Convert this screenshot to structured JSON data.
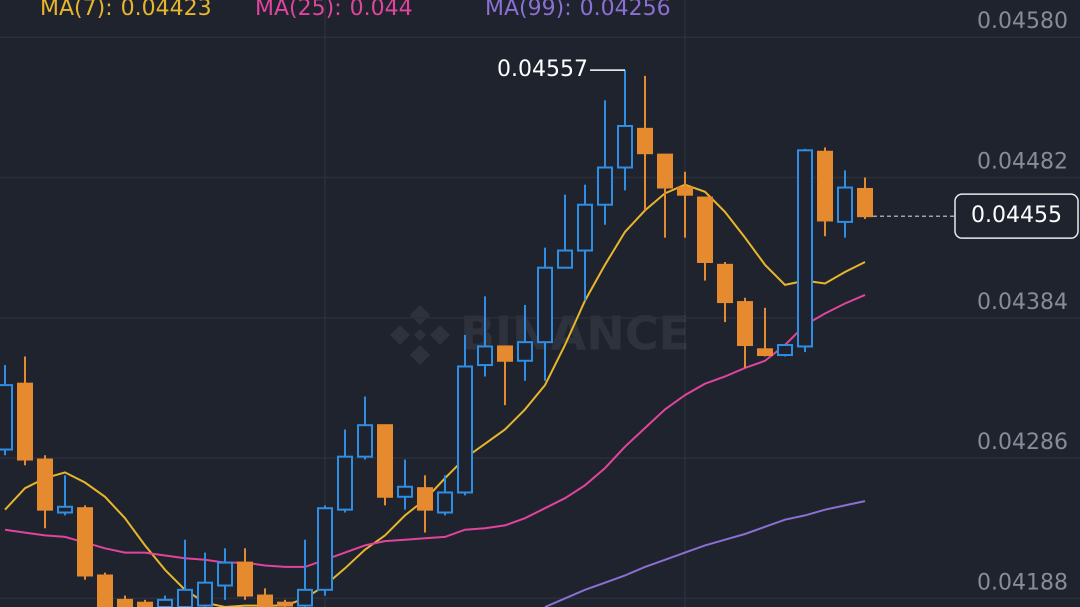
{
  "chart_data": {
    "type": "candlestick",
    "watermark": "BINANCE",
    "up_color": "#2f8de4",
    "down_color": "#e58a2e",
    "grid": true,
    "ylim": [
      0.04182,
      0.04606
    ],
    "yticks": [
      {
        "value": 0.0458,
        "label": "0.04580"
      },
      0.04482,
      0.04384,
      0.04286,
      0.04188
    ],
    "high_marker": 0.04557,
    "last_price": 0.04455,
    "open": [
      0.04292,
      0.04338,
      0.04285,
      0.04248,
      0.04251,
      0.04204,
      0.04187,
      0.04185,
      0.04182,
      0.04182,
      0.04183,
      0.04197,
      0.04213,
      0.0419,
      0.04185,
      0.04183,
      0.04194,
      0.0425,
      0.04287,
      0.04309,
      0.04259,
      0.04265,
      0.04248,
      0.04262,
      0.04351,
      0.04364,
      0.04354,
      0.04367,
      0.04419,
      0.04431,
      0.04463,
      0.04489,
      0.04516,
      0.04498,
      0.04475,
      0.04468,
      0.04421,
      0.04395,
      0.04362,
      0.04358,
      0.04364,
      0.045,
      0.04451,
      0.04474
    ],
    "high": [
      0.04351,
      0.04357,
      0.04288,
      0.04274,
      0.04253,
      0.04206,
      0.0419,
      0.04187,
      0.0419,
      0.04229,
      0.0422,
      0.04223,
      0.04223,
      0.04195,
      0.04187,
      0.04229,
      0.04253,
      0.04306,
      0.04329,
      0.04309,
      0.04285,
      0.04274,
      0.04274,
      0.04372,
      0.04399,
      0.04364,
      0.04393,
      0.04433,
      0.0447,
      0.04477,
      0.04536,
      0.04557,
      0.04553,
      0.04498,
      0.04486,
      0.04468,
      0.04423,
      0.04398,
      0.04391,
      0.04365,
      0.04502,
      0.04503,
      0.04487,
      0.04482
    ],
    "low": [
      0.04288,
      0.04281,
      0.04237,
      0.04246,
      0.04201,
      0.04182,
      0.04182,
      0.04182,
      0.04182,
      0.04182,
      0.04182,
      0.04187,
      0.04187,
      0.04182,
      0.04182,
      0.04182,
      0.0419,
      0.04248,
      0.04285,
      0.04253,
      0.0425,
      0.04234,
      0.04246,
      0.0426,
      0.04343,
      0.04323,
      0.0434,
      0.0434,
      0.04419,
      0.04396,
      0.04449,
      0.04473,
      0.04459,
      0.0444,
      0.0444,
      0.0441,
      0.04381,
      0.04349,
      0.04357,
      0.04357,
      0.0436,
      0.04441,
      0.0444,
      0.04453
    ],
    "close": [
      0.04337,
      0.04285,
      0.0425,
      0.04252,
      0.04204,
      0.04182,
      0.04182,
      0.04182,
      0.04187,
      0.04194,
      0.04199,
      0.04213,
      0.0419,
      0.04182,
      0.04183,
      0.04194,
      0.04251,
      0.04287,
      0.04309,
      0.04259,
      0.04266,
      0.0425,
      0.04262,
      0.0435,
      0.04364,
      0.04354,
      0.04367,
      0.04419,
      0.04431,
      0.04463,
      0.04489,
      0.04518,
      0.04499,
      0.04475,
      0.0447,
      0.04423,
      0.04395,
      0.04365,
      0.04358,
      0.04365,
      0.04501,
      0.04452,
      0.04475,
      0.04455
    ],
    "series": [
      {
        "name": "MA(7):",
        "current": 0.04423,
        "color": "#e9b62b",
        "values": [
          0.0425,
          0.04265,
          0.04272,
          0.04276,
          0.04269,
          0.04259,
          0.04244,
          0.04225,
          0.04208,
          0.04194,
          0.04185,
          0.04182,
          0.04183,
          0.04183,
          0.04183,
          0.04188,
          0.04197,
          0.04209,
          0.04222,
          0.04232,
          0.04246,
          0.04257,
          0.04272,
          0.04286,
          0.04296,
          0.04306,
          0.0432,
          0.04337,
          0.04365,
          0.04396,
          0.04421,
          0.04444,
          0.04459,
          0.04471,
          0.04477,
          0.04472,
          0.04458,
          0.0444,
          0.04421,
          0.04407,
          0.0441,
          0.04408,
          0.04416,
          0.04423
        ]
      },
      {
        "name": "MA(25):",
        "current": 0.044,
        "color": "#e0449c",
        "values": [
          0.04236,
          0.04234,
          0.04232,
          0.04231,
          0.04227,
          0.04223,
          0.0422,
          0.0422,
          0.04218,
          0.04216,
          0.04215,
          0.04213,
          0.04213,
          0.04211,
          0.0421,
          0.0421,
          0.04215,
          0.0422,
          0.04225,
          0.04228,
          0.04229,
          0.0423,
          0.04231,
          0.04236,
          0.04237,
          0.04239,
          0.04244,
          0.04251,
          0.04258,
          0.04267,
          0.04279,
          0.04294,
          0.04307,
          0.0432,
          0.0433,
          0.04338,
          0.04343,
          0.04349,
          0.04354,
          0.04365,
          0.04379,
          0.04387,
          0.04394,
          0.044
        ]
      },
      {
        "name": "MA(99):",
        "current": 0.04256,
        "color": "#8b6fd2",
        "values": [
          null,
          null,
          null,
          null,
          null,
          null,
          null,
          null,
          null,
          null,
          null,
          null,
          null,
          null,
          null,
          null,
          null,
          null,
          null,
          null,
          null,
          null,
          null,
          null,
          null,
          null,
          null,
          0.04182,
          0.04188,
          0.04194,
          0.04199,
          0.04204,
          0.0421,
          0.04215,
          0.0422,
          0.04225,
          0.04229,
          0.04233,
          0.04238,
          0.04243,
          0.04246,
          0.0425,
          0.04253,
          0.04256
        ]
      }
    ]
  }
}
